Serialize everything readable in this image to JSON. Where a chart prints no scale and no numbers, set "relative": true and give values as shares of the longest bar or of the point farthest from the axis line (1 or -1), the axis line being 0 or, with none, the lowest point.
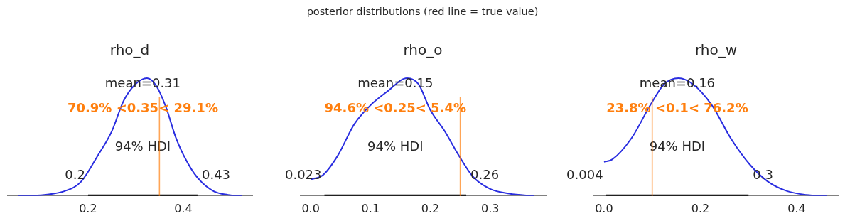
{
  "chart_data": [
    {
      "type": "line",
      "title": "rho_d",
      "relative": true,
      "legend": false,
      "grid": false,
      "xlim": [
        0.03,
        0.545
      ],
      "xticks": [
        0.2,
        0.4
      ],
      "series": [
        {
          "color": "#2a2ee0",
          "x": [
            0.053,
            0.108,
            0.15,
            0.185,
            0.22,
            0.25,
            0.275,
            0.3,
            0.324,
            0.344,
            0.364,
            0.384,
            0.404,
            0.429,
            0.464,
            0.494,
            0.523
          ],
          "values": [
            0,
            0.01,
            0.04,
            0.12,
            0.34,
            0.55,
            0.81,
            0.95,
            1.0,
            0.93,
            0.75,
            0.5,
            0.32,
            0.16,
            0.04,
            0.01,
            0
          ]
        },
        {
          "type": "line",
          "name": "94% HDI",
          "color": "#000000",
          "x": [
            0.2,
            0.43
          ],
          "values": [
            0,
            0
          ]
        }
      ],
      "ref_lines": [
        {
          "axis": "x",
          "value": 0.35,
          "label": "70.9% <0.35< 29.1%",
          "color": "#ff7f0e"
        }
      ],
      "annotations": [
        "posterior distributions (red line = true value)",
        "mean=0.31",
        {
          "text": "0.2",
          "x": 0.2,
          "y": 0
        },
        {
          "text": "0.43",
          "x": 0.43,
          "y": 0
        }
      ]
    },
    {
      "type": "line",
      "title": "rho_o",
      "relative": true,
      "legend": false,
      "grid": false,
      "xlim": [
        -0.018,
        0.393
      ],
      "xticks": [
        {
          "value": 0,
          "label": "0.0"
        },
        0.1,
        0.2,
        0.3
      ],
      "series": [
        {
          "color": "#2a2ee0",
          "x": [
            0.0,
            0.021,
            0.045,
            0.073,
            0.1,
            0.129,
            0.161,
            0.18,
            0.2,
            0.224,
            0.248,
            0.272,
            0.3,
            0.332,
            0.374
          ],
          "values": [
            0.14,
            0.18,
            0.34,
            0.61,
            0.77,
            0.89,
            1.0,
            0.95,
            0.73,
            0.55,
            0.34,
            0.16,
            0.06,
            0.02,
            0
          ]
        },
        {
          "type": "line",
          "name": "94% HDI",
          "color": "#000000",
          "x": [
            0.023,
            0.26
          ],
          "values": [
            0,
            0
          ]
        }
      ],
      "ref_lines": [
        {
          "axis": "x",
          "value": 0.25,
          "label": "94.6% <0.25< 5.4%",
          "color": "#ff7f0e"
        }
      ],
      "annotations": [
        "mean=0.15",
        {
          "text": "0.023",
          "x": 0.023,
          "y": 0
        },
        {
          "text": "0.26",
          "x": 0.26,
          "y": 0
        }
      ]
    },
    {
      "type": "line",
      "title": "rho_w",
      "relative": true,
      "legend": false,
      "grid": false,
      "xlim": [
        -0.022,
        0.487
      ],
      "xticks": [
        {
          "value": 0,
          "label": "0.0"
        },
        0.2,
        0.4
      ],
      "series": [
        {
          "color": "#2a2ee0",
          "x": [
            0.0,
            0.017,
            0.057,
            0.096,
            0.125,
            0.155,
            0.184,
            0.224,
            0.263,
            0.302,
            0.341,
            0.381,
            0.42,
            0.462
          ],
          "values": [
            0.29,
            0.31,
            0.49,
            0.77,
            0.95,
            1.0,
            0.95,
            0.77,
            0.49,
            0.27,
            0.12,
            0.04,
            0.01,
            0
          ]
        },
        {
          "type": "line",
          "name": "94% HDI",
          "color": "#000000",
          "x": [
            0.004,
            0.3
          ],
          "values": [
            0,
            0
          ]
        }
      ],
      "ref_lines": [
        {
          "axis": "x",
          "value": 0.1,
          "label": "23.8% <0.1< 76.2%",
          "color": "#ff7f0e"
        }
      ],
      "annotations": [
        "mean=0.16",
        {
          "text": "0.004",
          "x": 0.004,
          "y": 0
        },
        {
          "text": "0.3",
          "x": 0.3,
          "y": 0
        }
      ]
    }
  ]
}
